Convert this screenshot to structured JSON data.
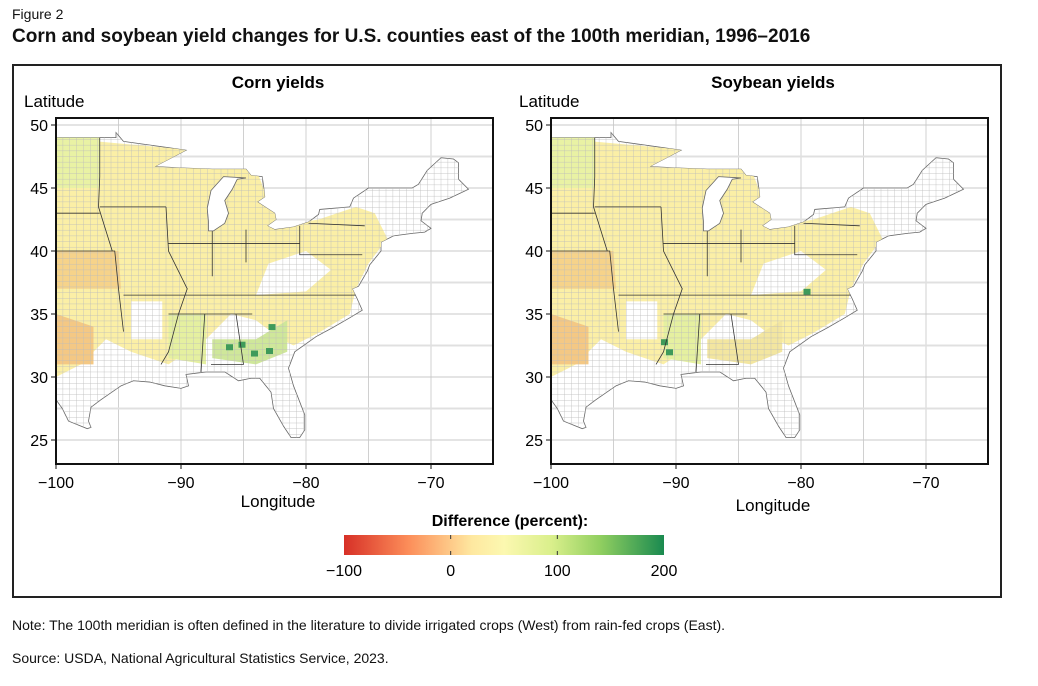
{
  "figure_label": "Figure 2",
  "title": "Corn and soybean yield changes for U.S. counties east of the 100th meridian, 1996–2016",
  "note": "Note: The 100th meridian is often defined in the literature to divide irrigated crops (West) from rain-fed crops (East).",
  "source": "Source: USDA, National Agricultural Statistics Service, 2023.",
  "chart_data": {
    "type": "map",
    "panels": [
      {
        "title": "Corn yields",
        "xlabel": "Longitude",
        "ylabel": "Latitude"
      },
      {
        "title": "Soybean yields",
        "xlabel": "Longitude",
        "ylabel": "Latitude"
      }
    ],
    "x_ticks": [
      "−100",
      "−90",
      "−80",
      "−70"
    ],
    "x_tick_values": [
      -100,
      -90,
      -80,
      -70
    ],
    "y_ticks": [
      "50",
      "45",
      "40",
      "35",
      "30",
      "25"
    ],
    "y_tick_values": [
      50,
      45,
      40,
      35,
      30,
      25
    ],
    "xlim": [
      -100,
      -65
    ],
    "ylim": [
      23.5,
      50.5
    ],
    "grid": true,
    "colorbar": {
      "title": "Difference (percent):",
      "ticks": [
        "−100",
        "0",
        "100",
        "200"
      ],
      "tick_values": [
        -100,
        0,
        100,
        200
      ],
      "range": [
        -100,
        200
      ],
      "colors": [
        "#d73027",
        "#fc8d59",
        "#fee08b",
        "#ffffbf",
        "#d9ef8b",
        "#91cf60",
        "#1a9850"
      ],
      "placement": "bottom-center"
    }
  }
}
